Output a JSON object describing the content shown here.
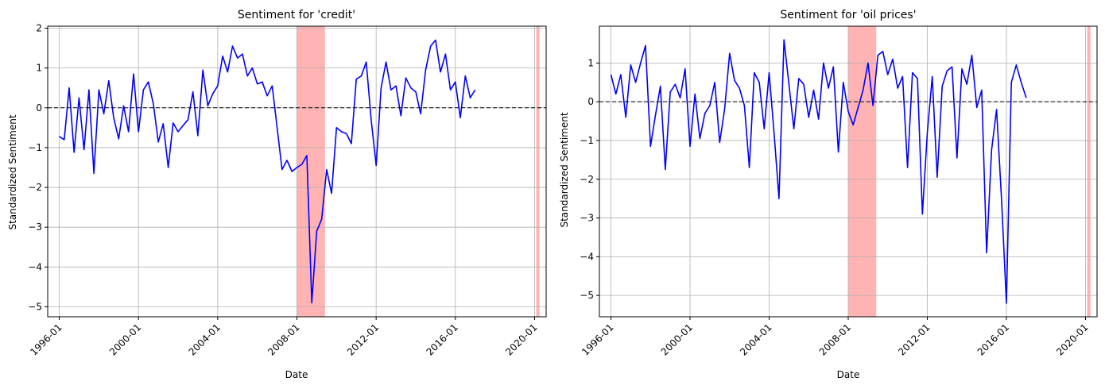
{
  "colors": {
    "line": "#0000ff",
    "recession": "#ff9999",
    "grid": "#b0b0b0",
    "zero": "#000000"
  },
  "chart_data": [
    {
      "type": "line",
      "title": "Sentiment for 'credit'",
      "xlabel": "Date",
      "ylabel": "Standardized Sentiment",
      "xlim": [
        "1995-06",
        "2020-08"
      ],
      "ylim": [
        -5.25,
        2.05
      ],
      "yticks": [
        -5,
        -4,
        -3,
        -2,
        -1,
        0,
        1,
        2
      ],
      "ytick_labels": [
        "−5",
        "−4",
        "−3",
        "−2",
        "−1",
        "0",
        "1",
        "2"
      ],
      "xticks": [
        "1996-01",
        "2000-01",
        "2004-01",
        "2008-01",
        "2012-01",
        "2016-01",
        "2020-01"
      ],
      "grid": true,
      "reference_line": {
        "y": 0,
        "style": "dashed"
      },
      "shaded_periods": [
        [
          "2008-01",
          "2009-06"
        ],
        [
          "2020-02",
          "2020-04"
        ]
      ],
      "series": [
        {
          "x": [
            "1996-01",
            "1996-04",
            "1996-07",
            "1996-10",
            "1997-01",
            "1997-04",
            "1997-07",
            "1997-10",
            "1998-01",
            "1998-04",
            "1998-07",
            "1998-10",
            "1999-01",
            "1999-04",
            "1999-07",
            "1999-10",
            "2000-01",
            "2000-04",
            "2000-07",
            "2000-10",
            "2001-01",
            "2001-04",
            "2001-07",
            "2001-10",
            "2002-01",
            "2002-04",
            "2002-07",
            "2002-10",
            "2003-01",
            "2003-04",
            "2003-07",
            "2003-10",
            "2004-01",
            "2004-04",
            "2004-07",
            "2004-10",
            "2005-01",
            "2005-04",
            "2005-07",
            "2005-10",
            "2006-01",
            "2006-04",
            "2006-07",
            "2006-10",
            "2007-01",
            "2007-04",
            "2007-07",
            "2007-10",
            "2008-01",
            "2008-04",
            "2008-07",
            "2008-10",
            "2009-01",
            "2009-04",
            "2009-07",
            "2009-10",
            "2010-01",
            "2010-04",
            "2010-07",
            "2010-10",
            "2011-01",
            "2011-04",
            "2011-07",
            "2011-10",
            "2012-01",
            "2012-04",
            "2012-07",
            "2012-10",
            "2013-01",
            "2013-04",
            "2013-07",
            "2013-10",
            "2014-01",
            "2014-04",
            "2014-07",
            "2014-10",
            "2015-01",
            "2015-04",
            "2015-07",
            "2015-10",
            "2016-01",
            "2016-04",
            "2016-07",
            "2016-10",
            "2017-01"
          ],
          "y": [
            -0.72,
            -0.8,
            0.5,
            -1.12,
            0.25,
            -1.05,
            0.45,
            -1.65,
            0.45,
            -0.15,
            0.68,
            -0.25,
            -0.78,
            0.05,
            -0.6,
            0.85,
            -0.6,
            0.45,
            0.65,
            0.1,
            -0.86,
            -0.4,
            -1.5,
            -0.38,
            -0.6,
            -0.45,
            -0.3,
            0.4,
            -0.7,
            0.95,
            0.05,
            0.35,
            0.55,
            1.3,
            0.9,
            1.55,
            1.25,
            1.35,
            0.8,
            1.0,
            0.6,
            0.65,
            0.3,
            0.55,
            -0.5,
            -1.55,
            -1.32,
            -1.6,
            -1.5,
            -1.42,
            -1.2,
            -4.9,
            -3.1,
            -2.8,
            -1.55,
            -2.15,
            -0.5,
            -0.6,
            -0.65,
            -0.9,
            0.72,
            0.8,
            1.15,
            -0.3,
            -1.45,
            0.5,
            1.15,
            0.45,
            0.55,
            -0.2,
            0.75,
            0.5,
            0.4,
            -0.15,
            0.95,
            1.55,
            1.7,
            0.9,
            1.35,
            0.45,
            0.65,
            -0.25,
            0.8,
            0.25,
            0.45
          ]
        }
      ]
    },
    {
      "type": "line",
      "title": "Sentiment for 'oil prices'",
      "xlabel": "Date",
      "ylabel": "Standardized Sentiment",
      "xlim": [
        "1995-06",
        "2020-08"
      ],
      "ylim": [
        -5.55,
        1.95
      ],
      "yticks": [
        -5,
        -4,
        -3,
        -2,
        -1,
        0,
        1
      ],
      "ytick_labels": [
        "−5",
        "−4",
        "−3",
        "−2",
        "−1",
        "0",
        "1"
      ],
      "xticks": [
        "1996-01",
        "2000-01",
        "2004-01",
        "2008-01",
        "2012-01",
        "2016-01",
        "2020-01"
      ],
      "grid": true,
      "reference_line": {
        "y": 0,
        "style": "dashed"
      },
      "shaded_periods": [
        [
          "2008-01",
          "2009-06"
        ],
        [
          "2020-02",
          "2020-04"
        ]
      ],
      "series": [
        {
          "x": [
            "1996-01",
            "1996-04",
            "1996-07",
            "1996-10",
            "1997-01",
            "1997-04",
            "1997-07",
            "1997-10",
            "1998-01",
            "1998-04",
            "1998-07",
            "1998-10",
            "1999-01",
            "1999-04",
            "1999-07",
            "1999-10",
            "2000-01",
            "2000-04",
            "2000-07",
            "2000-10",
            "2001-01",
            "2001-04",
            "2001-07",
            "2001-10",
            "2002-01",
            "2002-04",
            "2002-07",
            "2002-10",
            "2003-01",
            "2003-04",
            "2003-07",
            "2003-10",
            "2004-01",
            "2004-04",
            "2004-07",
            "2004-10",
            "2005-01",
            "2005-04",
            "2005-07",
            "2005-10",
            "2006-01",
            "2006-04",
            "2006-07",
            "2006-10",
            "2007-01",
            "2007-04",
            "2007-07",
            "2007-10",
            "2008-01",
            "2008-04",
            "2008-07",
            "2008-10",
            "2009-01",
            "2009-04",
            "2009-07",
            "2009-10",
            "2010-01",
            "2010-04",
            "2010-07",
            "2010-10",
            "2011-01",
            "2011-04",
            "2011-07",
            "2011-10",
            "2012-01",
            "2012-04",
            "2012-07",
            "2012-10",
            "2013-01",
            "2013-04",
            "2013-07",
            "2013-10",
            "2014-01",
            "2014-04",
            "2014-07",
            "2014-10",
            "2015-01",
            "2015-04",
            "2015-07",
            "2015-10",
            "2016-01",
            "2016-04",
            "2016-07",
            "2016-10",
            "2017-01"
          ],
          "y": [
            0.7,
            0.2,
            0.7,
            -0.4,
            0.95,
            0.5,
            1.0,
            1.45,
            -1.15,
            -0.35,
            0.4,
            -1.75,
            0.25,
            0.45,
            0.1,
            0.85,
            -1.15,
            0.2,
            -0.95,
            -0.3,
            -0.1,
            0.5,
            -1.05,
            -0.2,
            1.25,
            0.55,
            0.35,
            -0.1,
            -1.7,
            0.75,
            0.5,
            -0.7,
            0.75,
            -0.8,
            -2.5,
            1.6,
            0.45,
            -0.7,
            0.6,
            0.45,
            -0.4,
            0.3,
            -0.45,
            1.0,
            0.35,
            0.9,
            -1.3,
            0.5,
            -0.25,
            -0.6,
            -0.15,
            0.3,
            1.0,
            -0.1,
            1.2,
            1.3,
            0.7,
            1.1,
            0.35,
            0.65,
            -1.7,
            0.75,
            0.6,
            -2.9,
            -0.8,
            0.65,
            -1.95,
            0.4,
            0.8,
            0.9,
            -1.45,
            0.85,
            0.45,
            1.2,
            -0.15,
            0.3,
            -3.9,
            -1.25,
            -0.2,
            -2.5,
            -5.2,
            0.5,
            0.95,
            0.5,
            0.1
          ]
        }
      ]
    }
  ]
}
